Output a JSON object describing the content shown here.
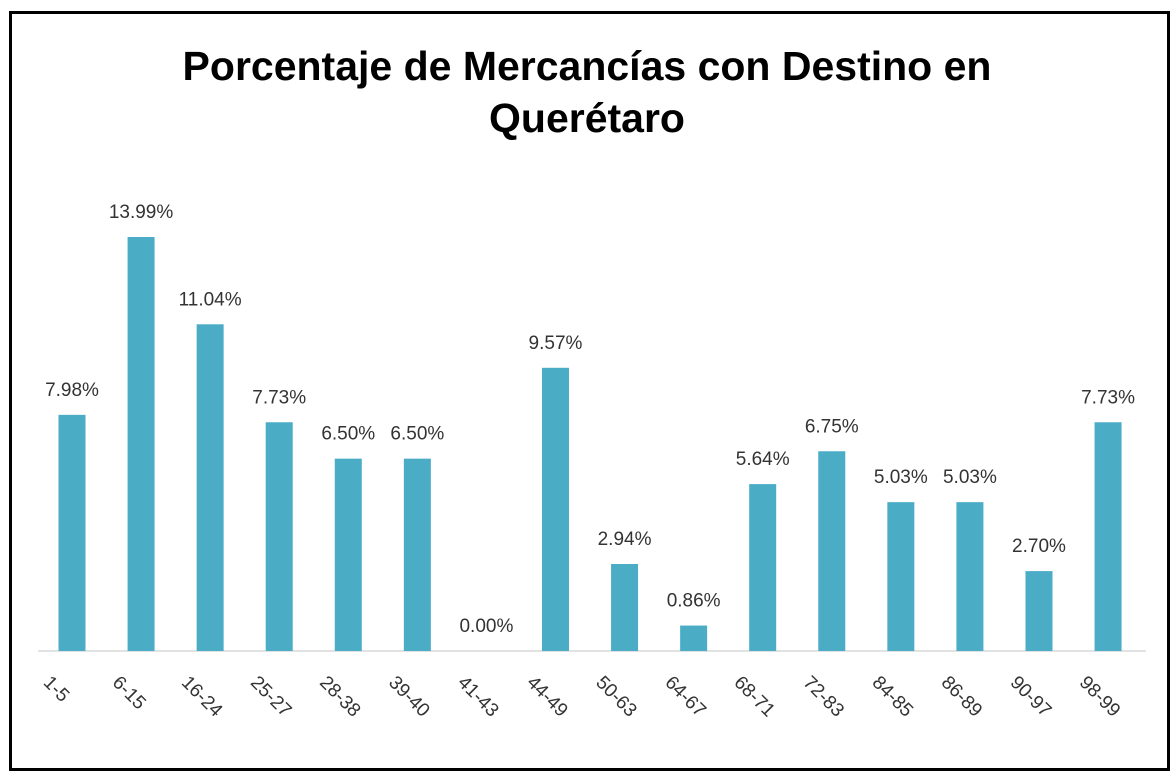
{
  "chart_data": {
    "type": "bar",
    "title": "Porcentaje de Mercancías con Destino en Querétaro",
    "categories": [
      "1-5",
      "6-15",
      "16-24",
      "25-27",
      "28-38",
      "39-40",
      "41-43",
      "44-49",
      "50-63",
      "64-67",
      "68-71",
      "72-83",
      "84-85",
      "86-89",
      "90-97",
      "98-99"
    ],
    "values": [
      7.98,
      13.99,
      11.04,
      7.73,
      6.5,
      6.5,
      0.0,
      9.57,
      2.94,
      0.86,
      5.64,
      6.75,
      5.03,
      5.03,
      2.7,
      7.73
    ],
    "value_labels": [
      "7.98%",
      "13.99%",
      "11.04%",
      "7.73%",
      "6.50%",
      "6.50%",
      "0.00%",
      "9.57%",
      "2.94%",
      "0.86%",
      "5.64%",
      "6.75%",
      "5.03%",
      "5.03%",
      "2.70%",
      "7.73%"
    ],
    "color": "#4bacc6"
  }
}
